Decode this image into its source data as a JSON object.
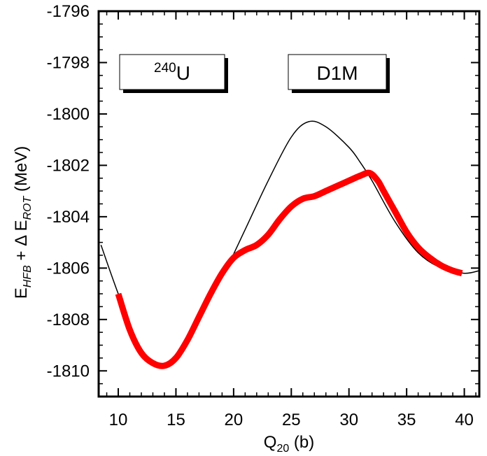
{
  "chart_data": {
    "type": "line",
    "title": "",
    "xlabel": {
      "main": "Q",
      "sub": "20",
      "rest": " (b)"
    },
    "ylabel": {
      "p1": "E",
      "s1": "HFB",
      "p2": " + Δ E",
      "s2": "ROT",
      "p3": " (MeV)"
    },
    "xlim": [
      8.3,
      41.3
    ],
    "ylim": [
      -1811,
      -1796
    ],
    "xticks": [
      10,
      15,
      20,
      25,
      30,
      35,
      40
    ],
    "xtick_labels": [
      "10",
      "15",
      "20",
      "25",
      "30",
      "35",
      "40"
    ],
    "yticks": [
      -1796,
      -1798,
      -1800,
      -1802,
      -1804,
      -1806,
      -1808,
      -1810
    ],
    "ytick_labels": [
      "-1796",
      "-1798",
      "-1800",
      "-1802",
      "-1804",
      "-1806",
      "-1808",
      "-1810"
    ],
    "grid": false,
    "series": [
      {
        "style": "thin",
        "color": "#000000",
        "x": [
          8.5,
          10,
          12,
          14,
          16,
          18,
          19.4,
          21,
          23,
          25,
          26.5,
          28,
          30,
          31,
          32,
          34,
          36,
          38,
          40,
          41.3
        ],
        "y": [
          -1805.1,
          -1807.0,
          -1809.3,
          -1809.8,
          -1808.9,
          -1807.1,
          -1806.0,
          -1804.5,
          -1802.6,
          -1800.9,
          -1800.3,
          -1800.5,
          -1801.3,
          -1801.9,
          -1802.6,
          -1804.2,
          -1805.4,
          -1806.0,
          -1806.2,
          -1806.1
        ]
      },
      {
        "style": "thick",
        "color": "#ff0000",
        "x": [
          10,
          11,
          12,
          13,
          14,
          15,
          16,
          17,
          18,
          19,
          20,
          21,
          22,
          23,
          24,
          25,
          26,
          27,
          28,
          29,
          30,
          31,
          31.8,
          32.5,
          33,
          34,
          35,
          36,
          37,
          38,
          39,
          39.8
        ],
        "y": [
          -1807.0,
          -1808.4,
          -1809.3,
          -1809.7,
          -1809.8,
          -1809.5,
          -1808.8,
          -1807.9,
          -1807.0,
          -1806.2,
          -1805.6,
          -1805.3,
          -1805.1,
          -1804.7,
          -1804.1,
          -1803.6,
          -1803.3,
          -1803.2,
          -1803.0,
          -1802.8,
          -1802.6,
          -1802.4,
          -1802.3,
          -1802.6,
          -1803.0,
          -1803.8,
          -1804.6,
          -1805.2,
          -1805.6,
          -1805.9,
          -1806.1,
          -1806.2
        ]
      }
    ],
    "annotations": [
      {
        "sup": "240",
        "text": "U"
      },
      {
        "sup": "",
        "text": "D1M"
      }
    ],
    "colors": {
      "frame": "#000000",
      "highlight": "#ff0000",
      "box_shadow": "#000000",
      "box_fill": "#ffffff"
    }
  }
}
